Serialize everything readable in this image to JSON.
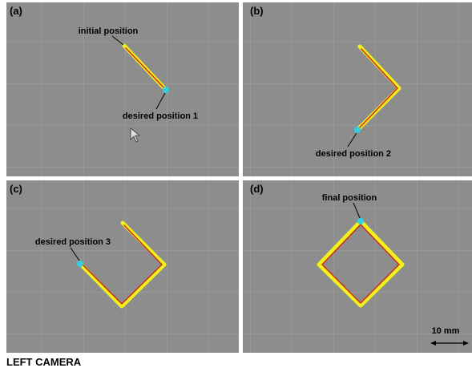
{
  "panels": [
    {
      "label": "(a)",
      "annotations": [
        "initial position",
        "desired position 1"
      ]
    },
    {
      "label": "(b)",
      "annotations": [
        "desired position 2"
      ]
    },
    {
      "label": "(c)",
      "annotations": [
        "desired position 3"
      ]
    },
    {
      "label": "(d)",
      "annotations": [
        "final position"
      ]
    }
  ],
  "scale_bar": "10 mm",
  "footer": "LEFT CAMERA"
}
